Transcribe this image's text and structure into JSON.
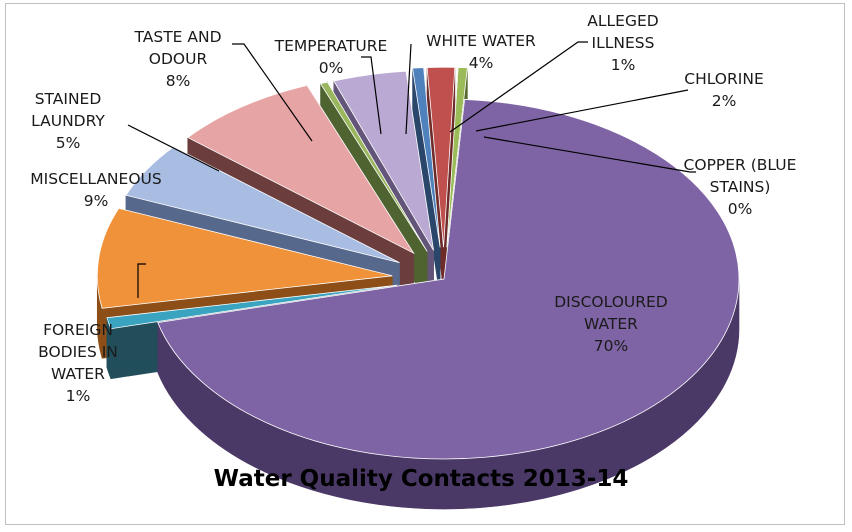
{
  "chart_data": {
    "type": "pie",
    "title": "Water Quality Contacts 2013-14",
    "slices": [
      {
        "label": "DISCOLOURED WATER",
        "lines": [
          "DISCOLOURED",
          "WATER",
          "70%"
        ],
        "value": 70,
        "pct_label": "70%",
        "color": "#7f64a5",
        "dark": "#4a3866"
      },
      {
        "label": "FOREIGN BODIES IN WATER",
        "lines": [
          "FOREIGN",
          "BODIES IN",
          "WATER",
          "1%"
        ],
        "value": 1,
        "pct_label": "1%",
        "color": "#3aa3bf",
        "dark": "#214e5a"
      },
      {
        "label": "MISCELLANEOUS",
        "lines": [
          "MISCELLANEOUS",
          "9%"
        ],
        "value": 9,
        "pct_label": "9%",
        "color": "#f0923a",
        "dark": "#8d4f17"
      },
      {
        "label": "STAINED LAUNDRY",
        "lines": [
          "STAINED",
          "LAUNDRY",
          "5%"
        ],
        "value": 5,
        "pct_label": "5%",
        "color": "#a9bde3",
        "dark": "#57688d"
      },
      {
        "label": "TASTE AND ODOUR",
        "lines": [
          "TASTE AND",
          "ODOUR",
          "8%"
        ],
        "value": 8,
        "pct_label": "8%",
        "color": "#e6a5a4",
        "dark": "#6b3e3d"
      },
      {
        "label": "TEMPERATURE",
        "lines": [
          "TEMPERATURE",
          "0%"
        ],
        "value": 0.4,
        "pct_label": "0%",
        "color": "#9ab65f",
        "dark": "#4e6330"
      },
      {
        "label": "WHITE WATER",
        "lines": [
          "WHITE WATER",
          "4%"
        ],
        "value": 4,
        "pct_label": "4%",
        "color": "#b9a9d3",
        "dark": "#635579"
      },
      {
        "label": "ALLEGED ILLNESS",
        "lines": [
          "ALLEGED",
          "ILLNESS",
          "1%"
        ],
        "value": 0.6,
        "pct_label": "1%",
        "color": "#4f81bd",
        "dark": "#2a466a"
      },
      {
        "label": "CHLORINE",
        "lines": [
          "CHLORINE",
          "2%"
        ],
        "value": 1.5,
        "pct_label": "2%",
        "color": "#c0504d",
        "dark": "#6e2b29"
      },
      {
        "label": "COPPER (BLUE STAINS)",
        "lines": [
          "COPPER (BLUE",
          "STAINS)",
          "0%"
        ],
        "value": 0.5,
        "pct_label": "0%",
        "color": "#9bbb59",
        "dark": "#56692f"
      }
    ]
  }
}
